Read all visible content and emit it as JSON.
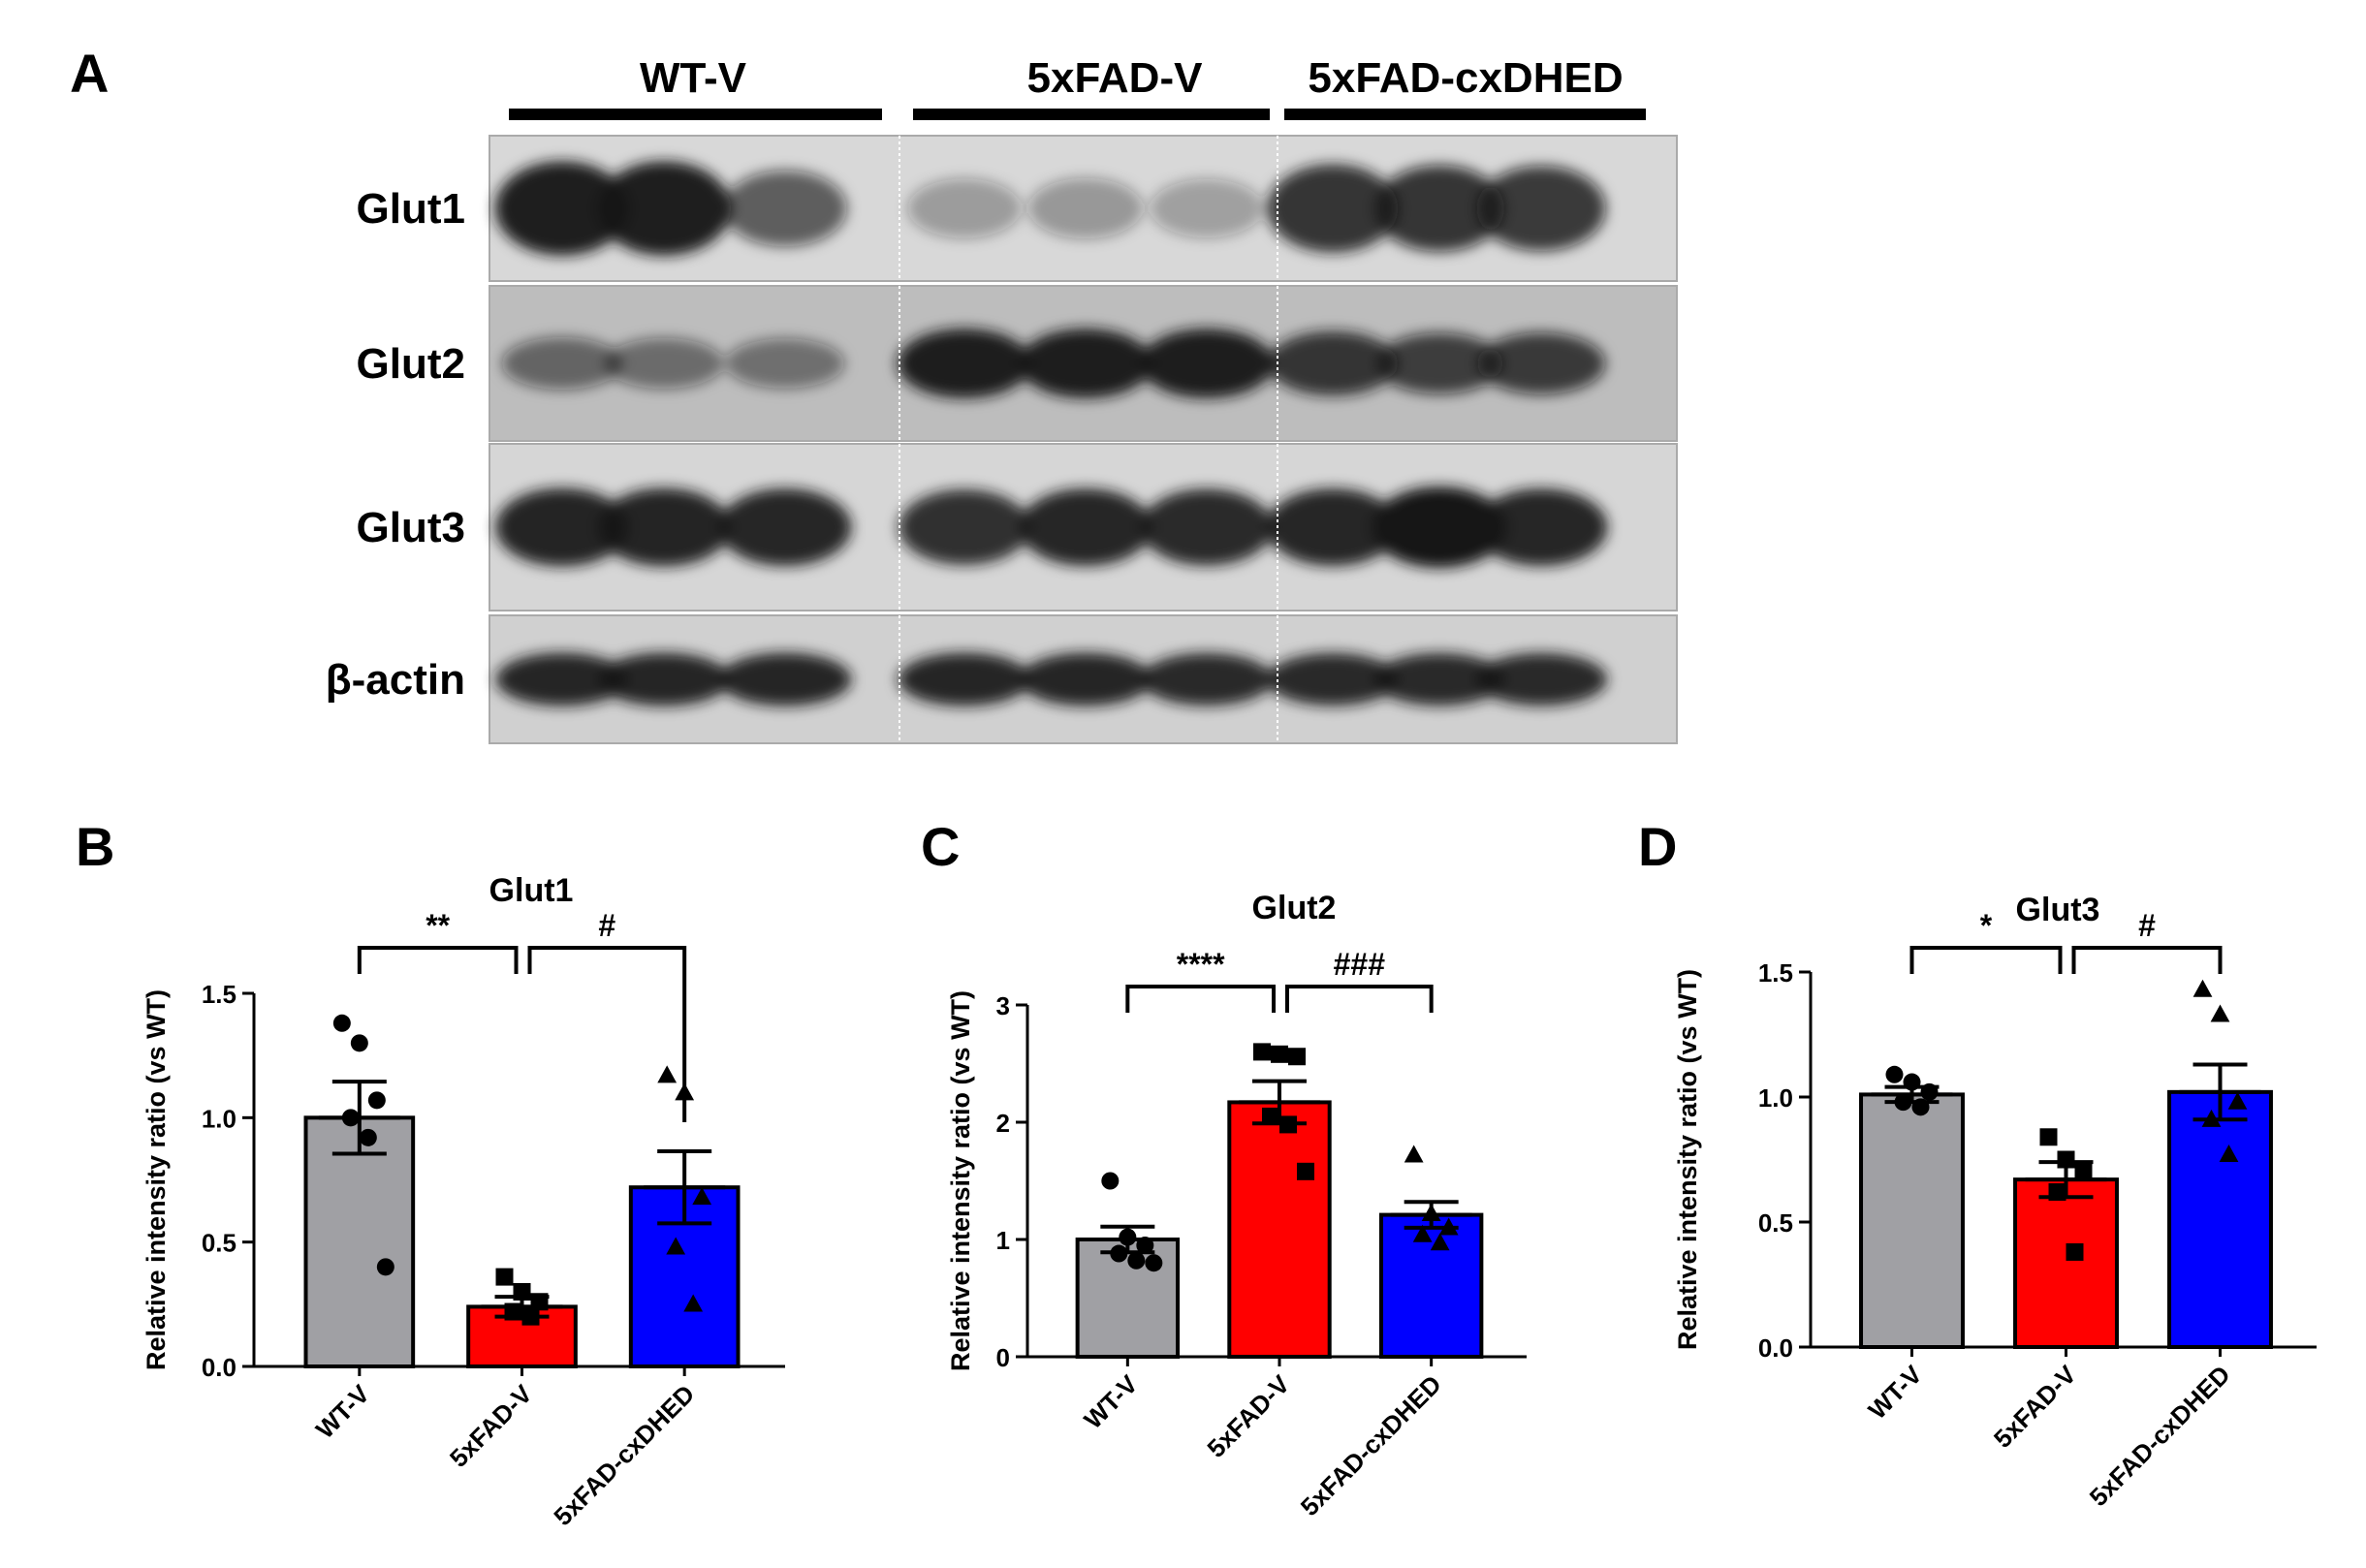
{
  "panel_a": {
    "label": "A",
    "groups": [
      "WT-V",
      "5xFAD-V",
      "5xFAD-cxDHED"
    ],
    "rows": [
      {
        "name": "Glut1",
        "bands": [
          [
            0.95,
            0.95,
            0.55
          ],
          [
            0.2,
            0.22,
            0.18
          ],
          [
            0.82,
            0.78,
            0.75
          ]
        ],
        "background": "#d8d8d8"
      },
      {
        "name": "Glut2",
        "bands": [
          [
            0.45,
            0.4,
            0.38
          ],
          [
            0.95,
            0.95,
            0.95
          ],
          [
            0.8,
            0.7,
            0.72
          ]
        ],
        "background": "#bdbdbd"
      },
      {
        "name": "Glut3",
        "bands": [
          [
            0.92,
            0.92,
            0.9
          ],
          [
            0.85,
            0.9,
            0.88
          ],
          [
            0.9,
            1.0,
            0.9
          ]
        ],
        "background": "#d6d6d6"
      },
      {
        "name": "β-actin",
        "bands": [
          [
            0.9,
            0.9,
            0.9
          ],
          [
            0.9,
            0.9,
            0.88
          ],
          [
            0.88,
            0.88,
            0.88
          ]
        ],
        "background": "#d0d0d0"
      }
    ]
  },
  "colors": {
    "wt": "#a0a0a4",
    "fad": "#ff0000",
    "cx": "#0000ff",
    "band": "#141414"
  },
  "chart_data": [
    {
      "panel_label": "B",
      "type": "bar",
      "title": "Glut1",
      "ylabel": "Relative intensity ratio (vs WT)",
      "categories": [
        "WT-V",
        "5xFAD-V",
        "5xFAD-cxDHED"
      ],
      "values": [
        1.0,
        0.24,
        0.72
      ],
      "sem": [
        0.145,
        0.04,
        0.145
      ],
      "points": [
        [
          1.38,
          1.3,
          1.07,
          1.0,
          0.92,
          0.4
        ],
        [
          0.36,
          0.3,
          0.26,
          0.22,
          0.2
        ],
        [
          1.17,
          1.1,
          0.68,
          0.48,
          0.25
        ]
      ],
      "markers": [
        "circle",
        "square",
        "triangle"
      ],
      "ylim": [
        0,
        1.5
      ],
      "yticks": [
        0.0,
        0.5,
        1.0,
        1.5
      ],
      "ytick_labels": [
        "0.0",
        "0.5",
        "1.0",
        "1.5"
      ],
      "comparisons": [
        {
          "from": 0,
          "to": 1,
          "label": "**"
        },
        {
          "from": 1,
          "to": 2,
          "label": "#"
        }
      ]
    },
    {
      "panel_label": "C",
      "type": "bar",
      "title": "Glut2",
      "ylabel": "Relative intensity ratio (vs WT)",
      "categories": [
        "WT-V",
        "5xFAD-V",
        "5xFAD-cxDHED"
      ],
      "values": [
        1.0,
        2.17,
        1.21
      ],
      "sem": [
        0.11,
        0.18,
        0.11
      ],
      "points": [
        [
          1.5,
          1.02,
          0.95,
          0.88,
          0.82,
          0.8
        ],
        [
          2.6,
          2.58,
          2.56,
          2.05,
          1.98,
          1.58
        ],
        [
          1.72,
          1.22,
          1.1,
          1.04,
          0.97
        ]
      ],
      "markers": [
        "circle",
        "square",
        "triangle"
      ],
      "ylim": [
        0,
        3
      ],
      "yticks": [
        0,
        1,
        2,
        3
      ],
      "ytick_labels": [
        "0",
        "1",
        "2",
        "3"
      ],
      "comparisons": [
        {
          "from": 0,
          "to": 1,
          "label": "****"
        },
        {
          "from": 1,
          "to": 2,
          "label": "###"
        }
      ]
    },
    {
      "panel_label": "D",
      "type": "bar",
      "title": "Glut3",
      "ylabel": "Relative intensity ratio (vs WT)",
      "categories": [
        "WT-V",
        "5xFAD-V",
        "5xFAD-cxDHED"
      ],
      "values": [
        1.01,
        0.67,
        1.02
      ],
      "sem": [
        0.03,
        0.07,
        0.11
      ],
      "points": [
        [
          1.09,
          1.06,
          1.02,
          0.98,
          0.96
        ],
        [
          0.84,
          0.75,
          0.7,
          0.62,
          0.38
        ],
        [
          1.43,
          1.33,
          0.98,
          0.91,
          0.77
        ]
      ],
      "markers": [
        "circle",
        "square",
        "triangle"
      ],
      "ylim": [
        0,
        1.5
      ],
      "yticks": [
        0.0,
        0.5,
        1.0,
        1.5
      ],
      "ytick_labels": [
        "0.0",
        "0.5",
        "1.0",
        "1.5"
      ],
      "comparisons": [
        {
          "from": 0,
          "to": 1,
          "label": "*"
        },
        {
          "from": 1,
          "to": 2,
          "label": "#"
        }
      ]
    }
  ]
}
